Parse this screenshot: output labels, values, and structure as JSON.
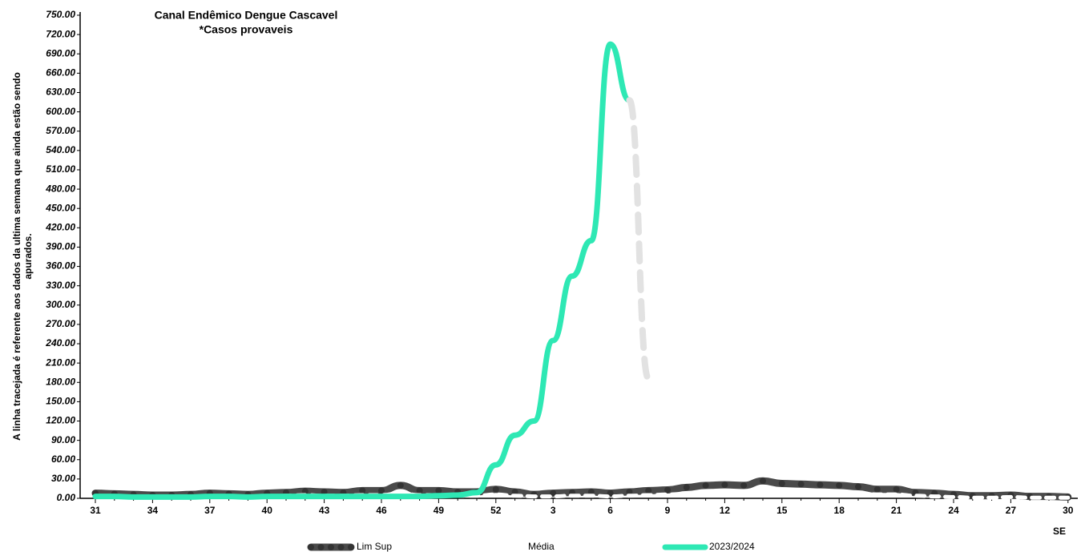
{
  "chart_data": {
    "type": "line",
    "title": [
      "Canal Endêmico Dengue Cascavel",
      "*Casos provaveis"
    ],
    "ylabel": [
      "A linha tracejada é referente aos dados da ultima semana que ainda estão sendo",
      "apurados."
    ],
    "xlabel": "SE",
    "categories": [
      31,
      null,
      null,
      34,
      null,
      null,
      37,
      null,
      null,
      40,
      null,
      null,
      43,
      null,
      null,
      46,
      null,
      null,
      49,
      null,
      null,
      52,
      null,
      null,
      3,
      null,
      null,
      6,
      null,
      null,
      9,
      null,
      null,
      12,
      null,
      null,
      15,
      null,
      null,
      18,
      null,
      null,
      21,
      null,
      null,
      24,
      null,
      null,
      27,
      null,
      null,
      30
    ],
    "ylim": [
      0,
      750
    ],
    "yticks": [
      {
        "value": 0,
        "label": "0.00"
      },
      {
        "value": 30,
        "label": "30.00"
      },
      {
        "value": 60,
        "label": "60.00"
      },
      {
        "value": 90,
        "label": "90.00"
      },
      {
        "value": 120,
        "label": "120.00"
      },
      {
        "value": 150,
        "label": "150.00"
      },
      {
        "value": 180,
        "label": "180.00"
      },
      {
        "value": 210,
        "label": "210.00"
      },
      {
        "value": 240,
        "label": "240.00"
      },
      {
        "value": 270,
        "label": "270.00"
      },
      {
        "value": 300,
        "label": "300.00"
      },
      {
        "value": 330,
        "label": "330.00"
      },
      {
        "value": 360,
        "label": "360.00"
      },
      {
        "value": 390,
        "label": "390.00"
      },
      {
        "value": 420,
        "label": "420.00"
      },
      {
        "value": 450,
        "label": "450.00"
      },
      {
        "value": 480,
        "label": "480.00"
      },
      {
        "value": 510,
        "label": "510.00"
      },
      {
        "value": 540,
        "label": "540.00"
      },
      {
        "value": 570,
        "label": "570.00"
      },
      {
        "value": 600,
        "label": "600.00"
      },
      {
        "value": 630,
        "label": "630.00"
      },
      {
        "value": 660,
        "label": "660.00"
      },
      {
        "value": 690,
        "label": "690.00"
      },
      {
        "value": 720,
        "label": "720.00"
      },
      {
        "value": 750,
        "label": "750.00"
      }
    ],
    "grid": false,
    "series": [
      {
        "name": "Lim Sup",
        "color": "#4a4a4a",
        "width": 9,
        "markers": true,
        "dash": false,
        "values": [
          8,
          7,
          6,
          5,
          5,
          6,
          8,
          7,
          6,
          8,
          9,
          11,
          10,
          9,
          12,
          12,
          20,
          12,
          12,
          10,
          10,
          14,
          10,
          6,
          8,
          9,
          10,
          8,
          10,
          12,
          13,
          17,
          20,
          21,
          20,
          27,
          23,
          22,
          21,
          20,
          18,
          14,
          14,
          9,
          8,
          6,
          4,
          4,
          5,
          3,
          3,
          2
        ]
      },
      {
        "name": "Média",
        "color": "#ffffff",
        "width": 5,
        "markers": false,
        "dash": true,
        "values": [
          3,
          3,
          2,
          2,
          2,
          2,
          3,
          3,
          2,
          3,
          4,
          5,
          4,
          4,
          5,
          5,
          8,
          5,
          5,
          4,
          4,
          6,
          4,
          3,
          3,
          4,
          4,
          3,
          4,
          5,
          6,
          7,
          9,
          10,
          9,
          12,
          10,
          10,
          9,
          9,
          8,
          6,
          6,
          4,
          3,
          2,
          1,
          1,
          2,
          1,
          1,
          1
        ]
      },
      {
        "name": "2023/2024",
        "color": "#2ee8b4",
        "width": 7,
        "markers": false,
        "dash": false,
        "values": [
          3,
          3,
          2,
          2,
          2,
          2,
          3,
          3,
          2,
          3,
          3,
          3,
          3,
          3,
          3,
          3,
          3,
          3,
          4,
          5,
          9,
          52,
          98,
          120,
          245,
          345,
          400,
          705,
          618,
          null,
          null,
          null,
          null,
          null,
          null,
          null,
          null,
          null,
          null,
          null,
          null,
          null,
          null,
          null,
          null,
          null,
          null,
          null,
          null,
          null,
          null,
          null
        ]
      },
      {
        "color": "#e2e2e2",
        "width": 8,
        "markers": false,
        "dash": true,
        "values": [
          null,
          null,
          null,
          null,
          null,
          null,
          null,
          null,
          null,
          null,
          null,
          null,
          null,
          null,
          null,
          null,
          null,
          null,
          null,
          null,
          null,
          null,
          null,
          null,
          null,
          null,
          null,
          null,
          618,
          186,
          null,
          null,
          null,
          null,
          null,
          null,
          null,
          null,
          null,
          null,
          null,
          null,
          null,
          null,
          null,
          null,
          null,
          null,
          null,
          null,
          null,
          null
        ]
      }
    ]
  }
}
